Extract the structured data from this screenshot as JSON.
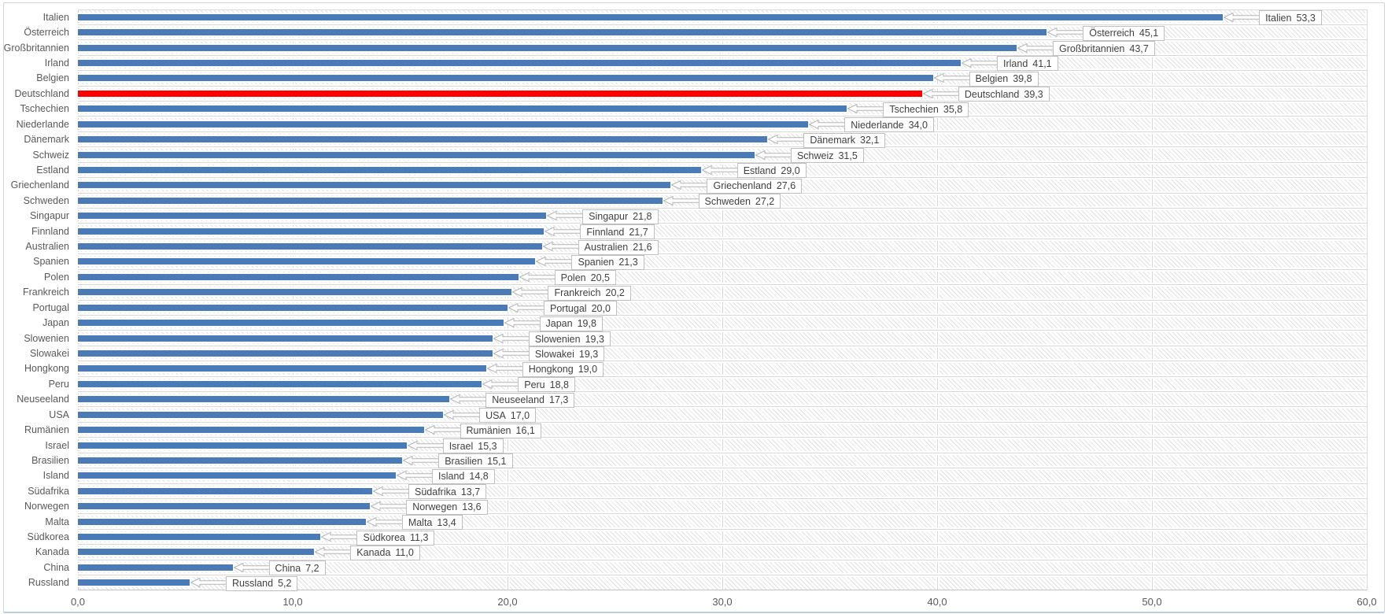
{
  "window": {
    "title": ""
  },
  "chart_data": {
    "type": "bar",
    "orientation": "horizontal",
    "title": "",
    "xlabel": "",
    "ylabel": "",
    "xlim": [
      0,
      60
    ],
    "xtick_values": [
      0,
      10,
      20,
      30,
      40,
      50,
      60
    ],
    "xtick_labels": [
      "0,0",
      "10,0",
      "20,0",
      "30,0",
      "40,0",
      "50,0",
      "60,0"
    ],
    "grid": true,
    "legend": "none",
    "highlight_category": "Deutschland",
    "bars": [
      {
        "category": "Italien",
        "value": 53.3,
        "display": "53,3"
      },
      {
        "category": "Österreich",
        "value": 45.1,
        "display": "45,1"
      },
      {
        "category": "Großbritannien",
        "value": 43.7,
        "display": "43,7"
      },
      {
        "category": "Irland",
        "value": 41.1,
        "display": "41,1"
      },
      {
        "category": "Belgien",
        "value": 39.8,
        "display": "39,8"
      },
      {
        "category": "Deutschland",
        "value": 39.3,
        "display": "39,3"
      },
      {
        "category": "Tschechien",
        "value": 35.8,
        "display": "35,8"
      },
      {
        "category": "Niederlande",
        "value": 34.0,
        "display": "34,0"
      },
      {
        "category": "Dänemark",
        "value": 32.1,
        "display": "32,1"
      },
      {
        "category": "Schweiz",
        "value": 31.5,
        "display": "31,5"
      },
      {
        "category": "Estland",
        "value": 29.0,
        "display": "29,0"
      },
      {
        "category": "Griechenland",
        "value": 27.6,
        "display": "27,6"
      },
      {
        "category": "Schweden",
        "value": 27.2,
        "display": "27,2"
      },
      {
        "category": "Singapur",
        "value": 21.8,
        "display": "21,8"
      },
      {
        "category": "Finnland",
        "value": 21.7,
        "display": "21,7"
      },
      {
        "category": "Australien",
        "value": 21.6,
        "display": "21,6"
      },
      {
        "category": "Spanien",
        "value": 21.3,
        "display": "21,3"
      },
      {
        "category": "Polen",
        "value": 20.5,
        "display": "20,5"
      },
      {
        "category": "Frankreich",
        "value": 20.2,
        "display": "20,2"
      },
      {
        "category": "Portugal",
        "value": 20.0,
        "display": "20,0"
      },
      {
        "category": "Japan",
        "value": 19.8,
        "display": "19,8"
      },
      {
        "category": "Slowenien",
        "value": 19.3,
        "display": "19,3"
      },
      {
        "category": "Slowakei",
        "value": 19.3,
        "display": "19,3"
      },
      {
        "category": "Hongkong",
        "value": 19.0,
        "display": "19,0"
      },
      {
        "category": "Peru",
        "value": 18.8,
        "display": "18,8"
      },
      {
        "category": "Neuseeland",
        "value": 17.3,
        "display": "17,3"
      },
      {
        "category": "USA",
        "value": 17.0,
        "display": "17,0"
      },
      {
        "category": "Rumänien",
        "value": 16.1,
        "display": "16,1"
      },
      {
        "category": "Israel",
        "value": 15.3,
        "display": "15,3"
      },
      {
        "category": "Brasilien",
        "value": 15.1,
        "display": "15,1"
      },
      {
        "category": "Island",
        "value": 14.8,
        "display": "14,8"
      },
      {
        "category": "Südafrika",
        "value": 13.7,
        "display": "13,7"
      },
      {
        "category": "Norwegen",
        "value": 13.6,
        "display": "13,6"
      },
      {
        "category": "Malta",
        "value": 13.4,
        "display": "13,4"
      },
      {
        "category": "Südkorea",
        "value": 11.3,
        "display": "11,3"
      },
      {
        "category": "Kanada",
        "value": 11.0,
        "display": "11,0"
      },
      {
        "category": "China",
        "value": 7.2,
        "display": "7,2"
      },
      {
        "category": "Russland",
        "value": 5.2,
        "display": "5,2"
      }
    ]
  },
  "colors": {
    "bar": "#4A7BB7",
    "highlight": "#FF0000",
    "grid": "#D9D9D9",
    "hatch": "#E0E0E0",
    "category_text": "#595959",
    "callout_text": "#404040",
    "callout_border": "#BFBFBF",
    "frame_border": "#D3D3D3",
    "frame_bottom": "#B9CFE8"
  }
}
